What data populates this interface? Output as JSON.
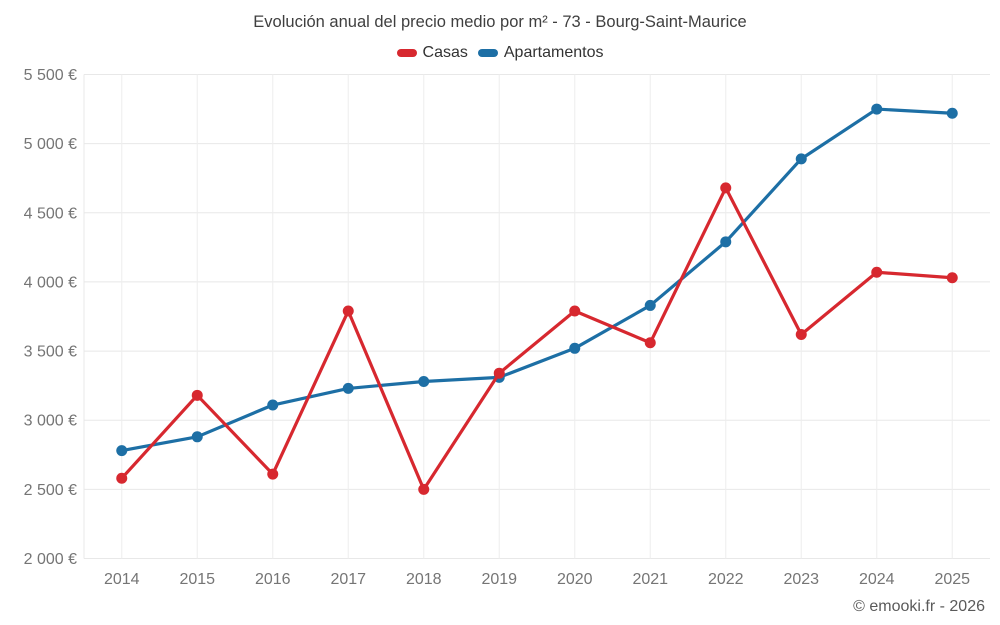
{
  "chart_data": {
    "type": "line",
    "title": "Evolución anual del precio medio por m² - 73 - Bourg-Saint-Maurice",
    "categories": [
      "2014",
      "2015",
      "2016",
      "2017",
      "2018",
      "2019",
      "2020",
      "2021",
      "2022",
      "2023",
      "2024",
      "2025"
    ],
    "series": [
      {
        "name": "Casas",
        "color": "#d7282f",
        "values": [
          2580,
          3180,
          2610,
          3790,
          2500,
          3340,
          3790,
          3560,
          4680,
          3620,
          4070,
          4030
        ]
      },
      {
        "name": "Apartamentos",
        "color": "#1d6fa5",
        "values": [
          2780,
          2880,
          3110,
          3230,
          3280,
          3310,
          3520,
          3830,
          4290,
          4890,
          5250,
          5220
        ]
      }
    ],
    "xlabel": "",
    "ylabel": "",
    "ylim": [
      2000,
      5500
    ],
    "y_tick_values": [
      2000,
      2500,
      3000,
      3500,
      4000,
      4500,
      5000,
      5500
    ],
    "y_tick_labels": [
      "2 000 €",
      "2 500 €",
      "3 000 €",
      "3 500 €",
      "4 000 €",
      "4 500 €",
      "5 000 €",
      "5 500 €"
    ],
    "grid": true,
    "legend_position": "top",
    "copyright": "© emooki.fr - 2026"
  }
}
